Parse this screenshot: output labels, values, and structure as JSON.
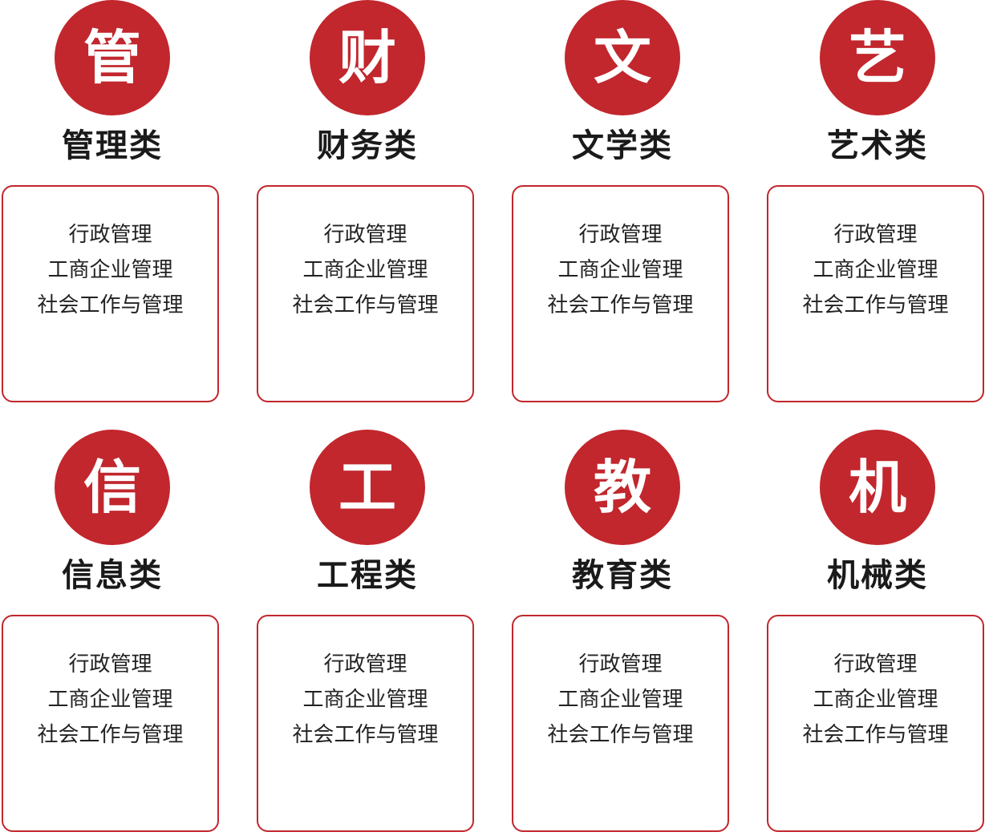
{
  "categories": [
    {
      "icon_char": "管",
      "title": "管理类",
      "majors": [
        "行政管理",
        "工商企业管理",
        "社会工作与管理"
      ]
    },
    {
      "icon_char": "财",
      "title": "财务类",
      "majors": [
        "行政管理",
        "工商企业管理",
        "社会工作与管理"
      ]
    },
    {
      "icon_char": "文",
      "title": "文学类",
      "majors": [
        "行政管理",
        "工商企业管理",
        "社会工作与管理"
      ]
    },
    {
      "icon_char": "艺",
      "title": "艺术类",
      "majors": [
        "行政管理",
        "工商企业管理",
        "社会工作与管理"
      ]
    },
    {
      "icon_char": "信",
      "title": "信息类",
      "majors": [
        "行政管理",
        "工商企业管理",
        "社会工作与管理"
      ]
    },
    {
      "icon_char": "工",
      "title": "工程类",
      "majors": [
        "行政管理",
        "工商企业管理",
        "社会工作与管理"
      ]
    },
    {
      "icon_char": "教",
      "title": "教育类",
      "majors": [
        "行政管理",
        "工商企业管理",
        "社会工作与管理"
      ]
    },
    {
      "icon_char": "机",
      "title": "机械类",
      "majors": [
        "行政管理",
        "工商企业管理",
        "社会工作与管理"
      ]
    }
  ],
  "colors": {
    "accent": "#c1272d",
    "text": "#222222"
  }
}
